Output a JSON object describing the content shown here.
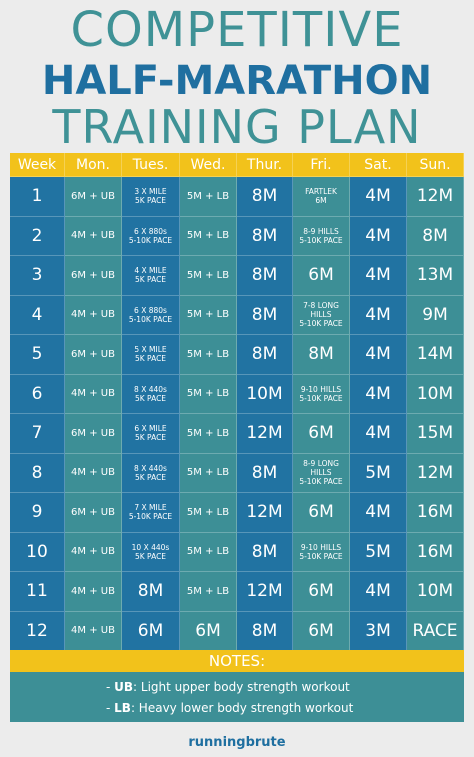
{
  "header": {
    "title_lines": [
      "COMPETITIVE",
      "HALF-MARATHON",
      "TRAINING PLAN"
    ]
  },
  "table": {
    "columns": [
      "Week",
      "Mon.",
      "Tues.",
      "Wed.",
      "Thur.",
      "Fri.",
      "Sat.",
      "Sun."
    ],
    "rows": [
      [
        "1",
        "6M + UB",
        "3 X MILE\n5K PACE",
        "5M + LB",
        "8M",
        "FARTLEK\n6M",
        "4M",
        "12M"
      ],
      [
        "2",
        "4M + UB",
        "6 X 880s\n5-10K PACE",
        "5M + LB",
        "8M",
        "8-9 HILLS\n5-10K PACE",
        "4M",
        "8M"
      ],
      [
        "3",
        "6M + UB",
        "4 X MILE\n5K PACE",
        "5M + LB",
        "8M",
        "6M",
        "4M",
        "13M"
      ],
      [
        "4",
        "4M + UB",
        "6 X 880s\n5-10K PACE",
        "5M + LB",
        "8M",
        "7-8 LONG\nHILLS\n5-10K PACE",
        "4M",
        "9M"
      ],
      [
        "5",
        "6M + UB",
        "5 X MILE\n5K PACE",
        "5M + LB",
        "8M",
        "8M",
        "4M",
        "14M"
      ],
      [
        "6",
        "4M + UB",
        "8 X 440s\n5K PACE",
        "5M + LB",
        "10M",
        "9-10 HILLS\n5-10K PACE",
        "4M",
        "10M"
      ],
      [
        "7",
        "6M + UB",
        "6 X MILE\n5K PACE",
        "5M + LB",
        "12M",
        "6M",
        "4M",
        "15M"
      ],
      [
        "8",
        "4M + UB",
        "8 X 440s\n5K PACE",
        "5M + LB",
        "8M",
        "8-9 LONG\nHILLS\n5-10K PACE",
        "5M",
        "12M"
      ],
      [
        "9",
        "6M + UB",
        "7 X MILE\n5-10K PACE",
        "5M + LB",
        "12M",
        "6M",
        "4M",
        "16M"
      ],
      [
        "10",
        "4M + UB",
        "10 X 440s\n5K PACE",
        "5M + LB",
        "8M",
        "9-10 HILLS\n5-10K PACE",
        "5M",
        "16M"
      ],
      [
        "11",
        "4M + UB",
        "8M",
        "5M + LB",
        "12M",
        "6M",
        "4M",
        "10M"
      ],
      [
        "12",
        "4M + UB",
        "6M",
        "6M",
        "8M",
        "6M",
        "3M",
        "RACE"
      ]
    ]
  },
  "notes": {
    "title": "NOTES:",
    "items": [
      {
        "key": "UB",
        "text": ": Light upper body strength workout"
      },
      {
        "key": "LB",
        "text": ": Heavy lower body strength workout"
      }
    ]
  },
  "footer": {
    "logo": "runningbrute"
  }
}
